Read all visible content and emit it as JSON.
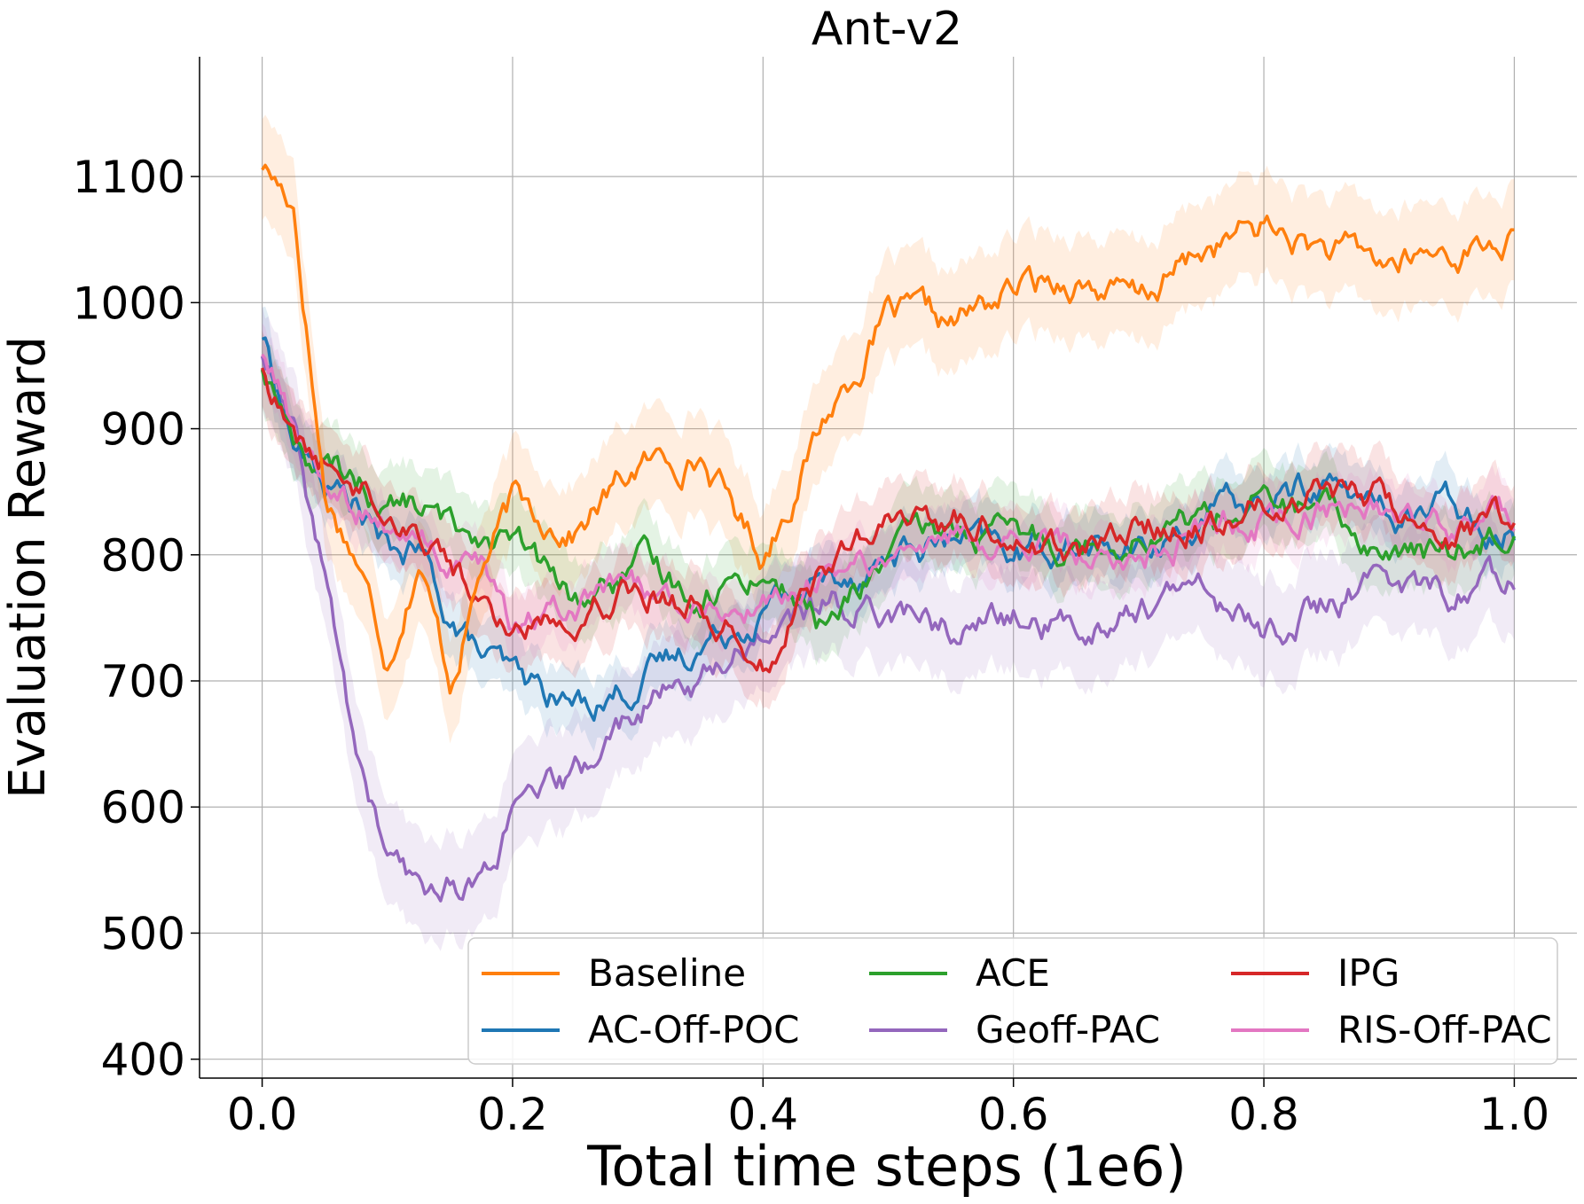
{
  "chart_data": {
    "type": "line",
    "title": "Ant-v2",
    "xlabel": "Total time steps (1e6)",
    "ylabel": "Evaluation Reward",
    "xlim": [
      -0.05,
      1.05
    ],
    "ylim": [
      385,
      1195
    ],
    "xticks": [
      {
        "value": 0.0,
        "label": "0.0"
      },
      {
        "value": 0.2,
        "label": "0.2"
      },
      {
        "value": 0.4,
        "label": "0.4"
      },
      {
        "value": 0.6,
        "label": "0.6"
      },
      {
        "value": 0.8,
        "label": "0.8"
      },
      {
        "value": 1.0,
        "label": "1.0"
      }
    ],
    "yticks": [
      {
        "value": 400,
        "label": "400"
      },
      {
        "value": 500,
        "label": "500"
      },
      {
        "value": 600,
        "label": "600"
      },
      {
        "value": 700,
        "label": "700"
      },
      {
        "value": 800,
        "label": "800"
      },
      {
        "value": 900,
        "label": "900"
      },
      {
        "value": 1000,
        "label": "1000"
      },
      {
        "value": 1100,
        "label": "1100"
      }
    ],
    "grid": true,
    "legend_placement": "lower-right",
    "legend_columns": 3,
    "x": [
      0.0,
      0.025,
      0.05,
      0.075,
      0.1,
      0.125,
      0.15,
      0.175,
      0.2,
      0.25,
      0.3,
      0.35,
      0.4,
      0.45,
      0.5,
      0.55,
      0.6,
      0.65,
      0.7,
      0.75,
      0.8,
      0.85,
      0.9,
      0.95,
      1.0
    ],
    "series": [
      {
        "name": "Baseline",
        "color": "#ff7f0e",
        "values": [
          1110,
          1080,
          850,
          800,
          720,
          800,
          700,
          790,
          840,
          820,
          870,
          880,
          800,
          910,
          990,
          980,
          1010,
          1020,
          1000,
          1040,
          1060,
          1040,
          1030,
          1040,
          1050
        ],
        "band": 40
      },
      {
        "name": "AC-Off-POC",
        "color": "#1f77b4",
        "values": [
          975,
          890,
          855,
          840,
          800,
          800,
          750,
          720,
          700,
          680,
          700,
          730,
          760,
          780,
          800,
          810,
          800,
          810,
          800,
          830,
          840,
          860,
          830,
          840,
          820
        ],
        "band": 25
      },
      {
        "name": "ACE",
        "color": "#2ca02c",
        "values": [
          950,
          895,
          865,
          860,
          840,
          840,
          820,
          820,
          810,
          760,
          790,
          770,
          790,
          740,
          800,
          820,
          810,
          810,
          820,
          830,
          840,
          830,
          800,
          800,
          830
        ],
        "band": 30
      },
      {
        "name": "Geoff-PAC",
        "color": "#9467bd",
        "values": [
          960,
          890,
          780,
          640,
          560,
          530,
          540,
          540,
          590,
          620,
          680,
          700,
          740,
          760,
          760,
          740,
          750,
          740,
          760,
          770,
          740,
          760,
          780,
          770,
          785
        ],
        "band": 40
      },
      {
        "name": "IPG",
        "color": "#d62728",
        "values": [
          950,
          890,
          870,
          860,
          840,
          820,
          800,
          760,
          740,
          760,
          780,
          760,
          720,
          790,
          820,
          830,
          820,
          800,
          820,
          830,
          840,
          860,
          840,
          820,
          830
        ],
        "band": 30
      },
      {
        "name": "RIS-Off-PAC",
        "color": "#e377c2",
        "values": [
          960,
          900,
          860,
          840,
          820,
          810,
          790,
          780,
          740,
          760,
          770,
          760,
          760,
          780,
          800,
          810,
          810,
          800,
          800,
          820,
          830,
          840,
          830,
          820,
          835
        ],
        "band": 25
      }
    ]
  }
}
